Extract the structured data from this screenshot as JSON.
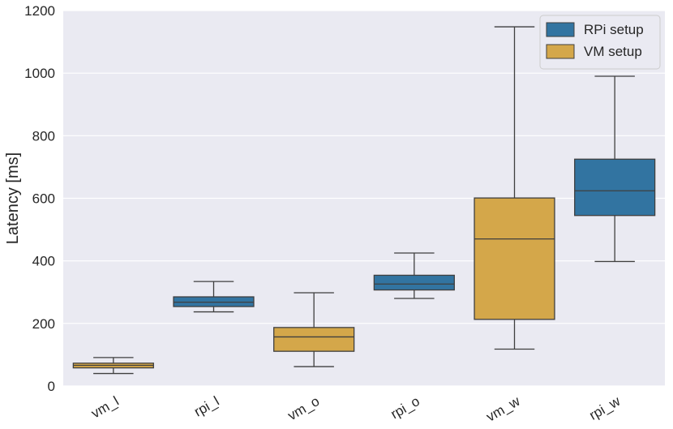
{
  "chart_data": {
    "type": "box",
    "title": "",
    "xlabel": "",
    "ylabel": "Latency [ms]",
    "ylim": [
      0,
      1200
    ],
    "yticks": [
      0,
      200,
      400,
      600,
      800,
      1000,
      1200
    ],
    "grid": true,
    "legend_position": "top-right",
    "categories": [
      "vm_l",
      "rpi_l",
      "vm_o",
      "rpi_o",
      "vm_w",
      "rpi_w"
    ],
    "legend": [
      {
        "name": "RPi setup",
        "color": "#3274a1"
      },
      {
        "name": "VM setup",
        "color": "#d4a74a"
      }
    ],
    "boxes": [
      {
        "category": "vm_l",
        "series": "VM setup",
        "min": 40,
        "q1": 58,
        "median": 66,
        "q3": 73,
        "max": 91
      },
      {
        "category": "rpi_l",
        "series": "RPi setup",
        "min": 237,
        "q1": 254,
        "median": 268,
        "q3": 285,
        "max": 334
      },
      {
        "category": "vm_o",
        "series": "VM setup",
        "min": 62,
        "q1": 111,
        "median": 157,
        "q3": 187,
        "max": 298
      },
      {
        "category": "rpi_o",
        "series": "RPi setup",
        "min": 280,
        "q1": 307,
        "median": 326,
        "q3": 354,
        "max": 425
      },
      {
        "category": "vm_w",
        "series": "VM setup",
        "min": 118,
        "q1": 213,
        "median": 470,
        "q3": 601,
        "max": 1148
      },
      {
        "category": "rpi_w",
        "series": "RPi setup",
        "min": 398,
        "q1": 545,
        "median": 624,
        "q3": 725,
        "max": 990
      }
    ],
    "style": {
      "plot_bg": "#eaeaf2",
      "grid_color": "#ffffff",
      "line_color": "#3f3f3f"
    }
  }
}
